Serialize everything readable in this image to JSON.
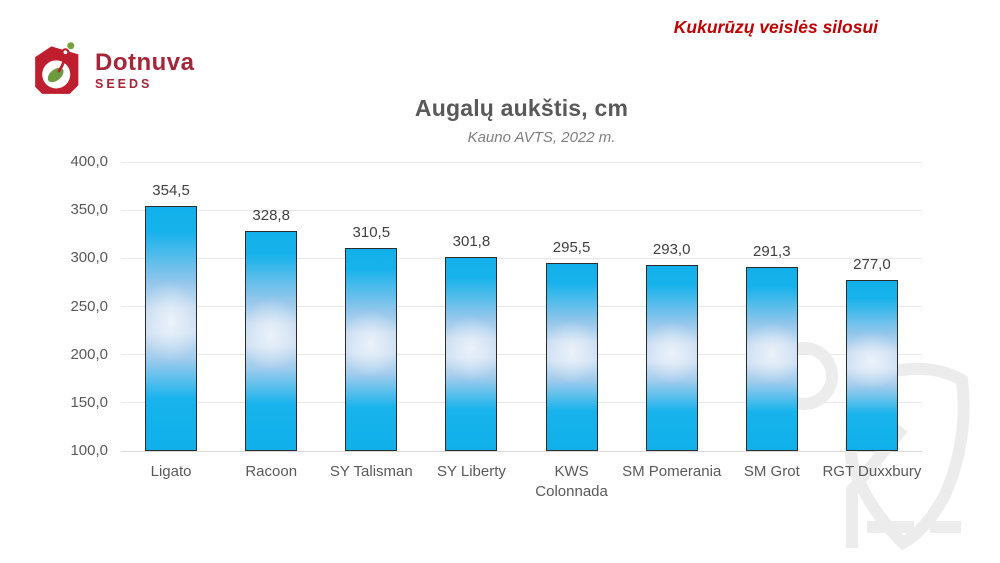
{
  "header": {
    "logo_name": "Dotnuva",
    "logo_sub": "SEEDS",
    "tagline": "Kukurūzų veislės silosui"
  },
  "chart_data": {
    "type": "bar",
    "title": "Augalų aukštis, cm",
    "subtitle": "Kauno AVTS, 2022 m.",
    "categories": [
      "Ligato",
      "Racoon",
      "SY Talisman",
      "SY Liberty",
      "KWS Colonnada",
      "SM Pomerania",
      "SM Grot",
      "RGT Duxxbury"
    ],
    "category_lines": [
      [
        "Ligato"
      ],
      [
        "Racoon"
      ],
      [
        "SY Talisman"
      ],
      [
        "SY Liberty"
      ],
      [
        "KWS",
        "Colonnada"
      ],
      [
        "SM Pomerania"
      ],
      [
        "SM Grot"
      ],
      [
        "RGT Duxxbury"
      ]
    ],
    "values": [
      354.5,
      328.8,
      310.5,
      301.8,
      295.5,
      293.0,
      291.3,
      277.0
    ],
    "value_labels": [
      "354,5",
      "328,8",
      "310,5",
      "301,8",
      "295,5",
      "293,0",
      "291,3",
      "277,0"
    ],
    "xlabel": "",
    "ylabel": "",
    "ylim": [
      100,
      400
    ],
    "ytick_values": [
      100,
      150,
      200,
      250,
      300,
      350,
      400
    ],
    "ytick_labels": [
      "100,0",
      "150,0",
      "200,0",
      "250,0",
      "300,0",
      "350,0",
      "400,0"
    ],
    "grid": true,
    "legend": "none",
    "decimal_separator": ","
  },
  "colors": {
    "accent_red": "#c00000",
    "logo_red": "#be1e2d",
    "logo_text_red": "#a52639",
    "leaf_green": "#6d9c40",
    "bar_cyan": "#14b1ea",
    "bar_center_pale": "#cfe0f3",
    "bar_border": "#2b2b2b",
    "title_gray": "#595959",
    "subtitle_gray": "#7f7f7f",
    "grid_gray": "#e8e8e8",
    "watermark_gray": "#ececec"
  }
}
